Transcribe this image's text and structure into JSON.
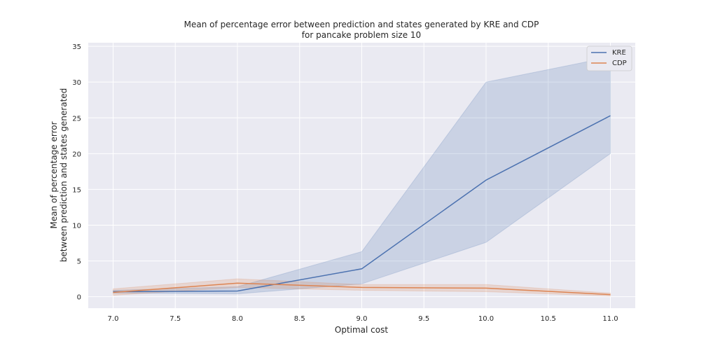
{
  "chart_data": {
    "type": "line",
    "title_line1": "Mean of percentage error between prediction and states generated by KRE and CDP",
    "title_line2": "for pancake problem size 10",
    "xlabel": "Optimal cost",
    "ylabel_line1": "Mean of percentage error",
    "ylabel_line2": "between prediction and states generated",
    "xlim": [
      6.8,
      11.2
    ],
    "ylim": [
      -1.6,
      35.5
    ],
    "x_ticks": [
      "7.0",
      "7.5",
      "8.0",
      "8.5",
      "9.0",
      "9.5",
      "10.0",
      "10.5",
      "11.0"
    ],
    "y_ticks": [
      "0",
      "5",
      "10",
      "15",
      "20",
      "25",
      "30",
      "35"
    ],
    "grid": true,
    "legend_position": "top-right",
    "x": [
      7.0,
      8.0,
      9.0,
      10.0,
      11.0
    ],
    "series": [
      {
        "name": "KRE",
        "color": "#4c72b0",
        "values": [
          0.7,
          0.8,
          3.9,
          16.3,
          25.3
        ],
        "ci_lower": [
          0.5,
          0.4,
          1.8,
          7.6,
          20.0
        ],
        "ci_upper": [
          0.9,
          1.4,
          6.3,
          30.0,
          33.5
        ]
      },
      {
        "name": "CDP",
        "color": "#dd8452",
        "values": [
          0.6,
          1.9,
          1.3,
          1.2,
          0.3
        ],
        "ci_lower": [
          0.2,
          1.3,
          0.9,
          0.7,
          0.1
        ],
        "ci_upper": [
          1.1,
          2.5,
          1.7,
          1.7,
          0.5
        ]
      }
    ]
  }
}
